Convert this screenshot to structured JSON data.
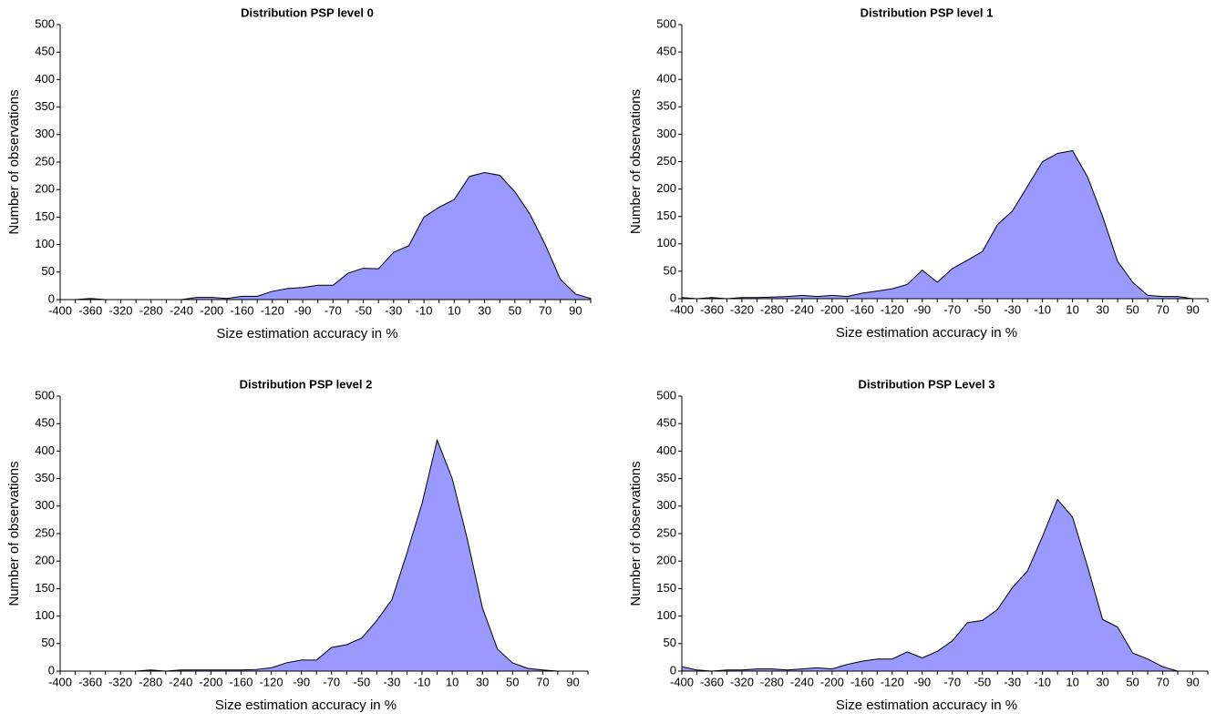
{
  "chart_data": [
    {
      "type": "area",
      "title": "Distribution PSP level 0",
      "x_label": "Size estimation accuracy in %",
      "y_label": "Number of observations",
      "color": "#9999ff",
      "categories": [
        -400,
        null,
        -360,
        null,
        -320,
        null,
        -280,
        null,
        -240,
        null,
        -200,
        null,
        -160,
        null,
        -120,
        null,
        -90,
        null,
        -70,
        null,
        -50,
        null,
        -30,
        null,
        -10,
        null,
        10,
        null,
        30,
        null,
        50,
        null,
        70,
        null,
        90,
        null
      ],
      "values": [
        0,
        0,
        2,
        0,
        0,
        0,
        0,
        0,
        0,
        4,
        4,
        2,
        6,
        6,
        15,
        20,
        22,
        26,
        26,
        48,
        57,
        56,
        86,
        98,
        150,
        168,
        182,
        224,
        231,
        226,
        196,
        155,
        100,
        37,
        10,
        2
      ],
      "ylim": [
        0,
        500
      ],
      "yticks": [
        0,
        50,
        100,
        150,
        200,
        250,
        300,
        350,
        400,
        450,
        500
      ]
    },
    {
      "type": "area",
      "title": "Distribution PSP level 1",
      "x_label": "Size estimation accuracy in %",
      "y_label": "Number of observations",
      "color": "#9999ff",
      "categories": [
        -400,
        null,
        -360,
        null,
        -320,
        null,
        -280,
        null,
        -240,
        null,
        -200,
        null,
        -160,
        null,
        -120,
        null,
        -90,
        null,
        -70,
        null,
        -50,
        null,
        -30,
        null,
        -10,
        null,
        10,
        null,
        30,
        null,
        50,
        null,
        70,
        null,
        90,
        null
      ],
      "values": [
        2,
        0,
        2,
        0,
        2,
        2,
        3,
        4,
        6,
        4,
        6,
        4,
        10,
        14,
        18,
        26,
        52,
        30,
        55,
        70,
        86,
        135,
        160,
        205,
        250,
        265,
        270,
        222,
        150,
        68,
        30,
        6,
        4,
        4,
        0,
        0
      ],
      "ylim": [
        0,
        500
      ],
      "yticks": [
        0,
        50,
        100,
        150,
        200,
        250,
        300,
        350,
        400,
        450,
        500
      ]
    },
    {
      "type": "area",
      "title": "Distribution PSP level 2",
      "x_label": "Size estimation accuracy in %",
      "y_label": "Number of observations",
      "color": "#9999ff",
      "categories": [
        -400,
        null,
        -360,
        null,
        -320,
        null,
        -280,
        null,
        -240,
        null,
        -200,
        null,
        -160,
        null,
        -120,
        null,
        -90,
        null,
        -70,
        null,
        -50,
        null,
        -30,
        null,
        -10,
        null,
        10,
        null,
        30,
        null,
        50,
        null,
        70,
        null,
        90,
        null
      ],
      "values": [
        0,
        0,
        0,
        0,
        0,
        0,
        2,
        0,
        2,
        2,
        2,
        2,
        2,
        3,
        6,
        15,
        20,
        20,
        43,
        48,
        60,
        92,
        130,
        215,
        305,
        420,
        350,
        240,
        115,
        40,
        15,
        5,
        2,
        0,
        0,
        0
      ],
      "ylim": [
        0,
        500
      ],
      "yticks": [
        0,
        50,
        100,
        150,
        200,
        250,
        300,
        350,
        400,
        450,
        500
      ]
    },
    {
      "type": "area",
      "title": "Distribution PSP Level 3",
      "x_label": "Size estimation accuracy in %",
      "y_label": "Number of observations",
      "color": "#9999ff",
      "categories": [
        -400,
        null,
        -360,
        null,
        -320,
        null,
        -280,
        null,
        -240,
        null,
        -200,
        null,
        -160,
        null,
        -120,
        null,
        -90,
        null,
        -70,
        null,
        -50,
        null,
        -30,
        null,
        -10,
        null,
        10,
        null,
        30,
        null,
        50,
        null,
        70,
        null,
        90,
        null
      ],
      "values": [
        8,
        2,
        0,
        2,
        2,
        4,
        4,
        2,
        4,
        6,
        4,
        12,
        18,
        22,
        22,
        35,
        24,
        36,
        55,
        88,
        92,
        112,
        152,
        182,
        245,
        312,
        280,
        190,
        94,
        80,
        33,
        22,
        8,
        0,
        0,
        0
      ],
      "ylim": [
        0,
        500
      ],
      "yticks": [
        0,
        50,
        100,
        150,
        200,
        250,
        300,
        350,
        400,
        450,
        500
      ]
    }
  ]
}
